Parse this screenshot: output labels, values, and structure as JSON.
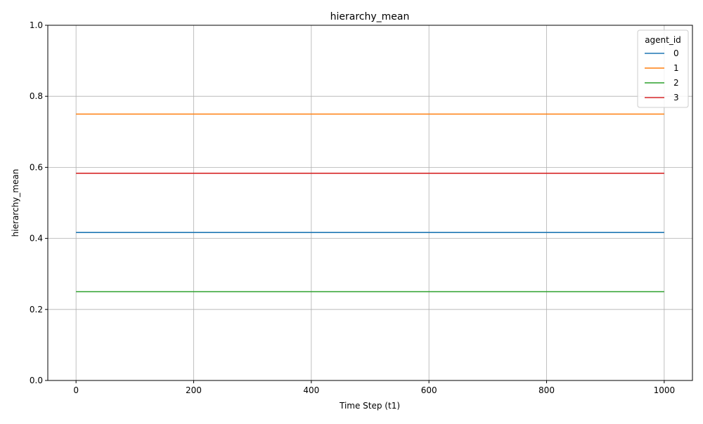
{
  "chart_data": {
    "type": "line",
    "title": "hierarchy_mean",
    "xlabel": "Time Step (t1)",
    "ylabel": "hierarchy_mean",
    "xlim": [
      -48,
      1048
    ],
    "ylim": [
      0.0,
      1.0
    ],
    "x_ticks": [
      0,
      200,
      400,
      600,
      800,
      1000
    ],
    "y_ticks": [
      0.0,
      0.2,
      0.4,
      0.6,
      0.8,
      1.0
    ],
    "x_tick_labels": [
      "0",
      "200",
      "400",
      "600",
      "800",
      "1000"
    ],
    "y_tick_labels": [
      "0.0",
      "0.2",
      "0.4",
      "0.6",
      "0.8",
      "1.0"
    ],
    "grid": true,
    "legend": {
      "title": "agent_id",
      "placement": "top-right"
    },
    "series": [
      {
        "name": "0",
        "color": "#1f77b4",
        "x": [
          0,
          1000
        ],
        "y": [
          0.4167,
          0.4167
        ]
      },
      {
        "name": "1",
        "color": "#ff7f0e",
        "x": [
          0,
          1000
        ],
        "y": [
          0.75,
          0.75
        ]
      },
      {
        "name": "2",
        "color": "#2ca02c",
        "x": [
          0,
          1000
        ],
        "y": [
          0.25,
          0.25
        ]
      },
      {
        "name": "3",
        "color": "#d62728",
        "x": [
          0,
          1000
        ],
        "y": [
          0.5833,
          0.5833
        ]
      }
    ]
  }
}
